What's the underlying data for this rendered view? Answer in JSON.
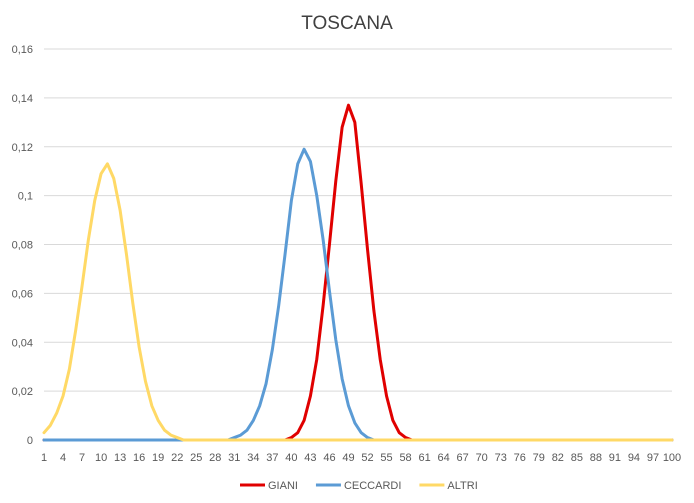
{
  "chart_data": {
    "type": "line",
    "title": "TOSCANA",
    "xlabel": "",
    "ylabel": "",
    "ylim": [
      0,
      0.16
    ],
    "yticks": [
      "0",
      "0,02",
      "0,04",
      "0,06",
      "0,08",
      "0,1",
      "0,12",
      "0,14",
      "0,16"
    ],
    "xlim": [
      1,
      100
    ],
    "xticks": [
      "1",
      "4",
      "7",
      "10",
      "13",
      "16",
      "19",
      "22",
      "25",
      "28",
      "31",
      "34",
      "37",
      "40",
      "43",
      "46",
      "49",
      "52",
      "55",
      "58",
      "61",
      "64",
      "67",
      "70",
      "73",
      "76",
      "79",
      "82",
      "85",
      "88",
      "91",
      "94",
      "97",
      "100"
    ],
    "grid": true,
    "legend_position": "bottom",
    "x": [
      1,
      2,
      3,
      4,
      5,
      6,
      7,
      8,
      9,
      10,
      11,
      12,
      13,
      14,
      15,
      16,
      17,
      18,
      19,
      20,
      21,
      22,
      23,
      24,
      25,
      26,
      27,
      28,
      29,
      30,
      31,
      32,
      33,
      34,
      35,
      36,
      37,
      38,
      39,
      40,
      41,
      42,
      43,
      44,
      45,
      46,
      47,
      48,
      49,
      50,
      51,
      52,
      53,
      54,
      55,
      56,
      57,
      58,
      59,
      60,
      61,
      62,
      63,
      64,
      65,
      66,
      67,
      68,
      69,
      70,
      71,
      72,
      73,
      74,
      75,
      76,
      77,
      78,
      79,
      80,
      81,
      82,
      83,
      84,
      85,
      86,
      87,
      88,
      89,
      90,
      91,
      92,
      93,
      94,
      95,
      96,
      97,
      98,
      99,
      100
    ],
    "series": [
      {
        "name": "GIANI",
        "color": "#e00000",
        "values": [
          0,
          0,
          0,
          0,
          0,
          0,
          0,
          0,
          0,
          0,
          0,
          0,
          0,
          0,
          0,
          0,
          0,
          0,
          0,
          0,
          0,
          0,
          0,
          0,
          0,
          0,
          0,
          0,
          0,
          0,
          0,
          0,
          0,
          0,
          0,
          0,
          0,
          0,
          0,
          0.001,
          0.003,
          0.008,
          0.018,
          0.033,
          0.055,
          0.08,
          0.106,
          0.128,
          0.137,
          0.13,
          0.105,
          0.078,
          0.053,
          0.033,
          0.018,
          0.008,
          0.003,
          0.001,
          0,
          0,
          0,
          0,
          0,
          0,
          0,
          0,
          0,
          0,
          0,
          0,
          0,
          0,
          0,
          0,
          0,
          0,
          0,
          0,
          0,
          0,
          0,
          0,
          0,
          0,
          0,
          0,
          0,
          0,
          0,
          0,
          0,
          0,
          0,
          0,
          0,
          0,
          0,
          0,
          0,
          0
        ]
      },
      {
        "name": "CECCARDI",
        "color": "#5b9bd5",
        "values": [
          0,
          0,
          0,
          0,
          0,
          0,
          0,
          0,
          0,
          0,
          0,
          0,
          0,
          0,
          0,
          0,
          0,
          0,
          0,
          0,
          0,
          0,
          0,
          0,
          0,
          0,
          0,
          0,
          0,
          0,
          0.001,
          0.002,
          0.004,
          0.008,
          0.014,
          0.023,
          0.037,
          0.055,
          0.076,
          0.098,
          0.113,
          0.119,
          0.114,
          0.1,
          0.082,
          0.061,
          0.041,
          0.025,
          0.014,
          0.007,
          0.003,
          0.001,
          0,
          0,
          0,
          0,
          0,
          0,
          0,
          0,
          0,
          0,
          0,
          0,
          0,
          0,
          0,
          0,
          0,
          0,
          0,
          0,
          0,
          0,
          0,
          0,
          0,
          0,
          0,
          0,
          0,
          0,
          0,
          0,
          0,
          0,
          0,
          0,
          0,
          0,
          0,
          0,
          0,
          0,
          0,
          0,
          0,
          0,
          0,
          0
        ]
      },
      {
        "name": "ALTRI",
        "color": "#ffd966",
        "values": [
          0.003,
          0.006,
          0.011,
          0.018,
          0.029,
          0.045,
          0.063,
          0.082,
          0.098,
          0.109,
          0.113,
          0.107,
          0.094,
          0.076,
          0.056,
          0.038,
          0.024,
          0.014,
          0.008,
          0.004,
          0.002,
          0.001,
          0,
          0,
          0,
          0,
          0,
          0,
          0,
          0,
          0,
          0,
          0,
          0,
          0,
          0,
          0,
          0,
          0,
          0,
          0,
          0,
          0,
          0,
          0,
          0,
          0,
          0,
          0,
          0,
          0,
          0,
          0,
          0,
          0,
          0,
          0,
          0,
          0,
          0,
          0,
          0,
          0,
          0,
          0,
          0,
          0,
          0,
          0,
          0,
          0,
          0,
          0,
          0,
          0,
          0,
          0,
          0,
          0,
          0,
          0,
          0,
          0,
          0,
          0,
          0,
          0,
          0,
          0,
          0,
          0,
          0,
          0,
          0,
          0,
          0,
          0,
          0,
          0,
          0
        ]
      }
    ]
  }
}
